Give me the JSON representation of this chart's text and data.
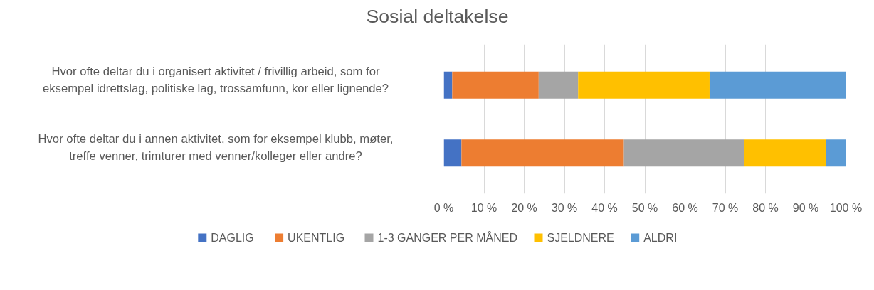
{
  "chart_data": {
    "type": "bar",
    "orientation": "horizontal",
    "stacked": true,
    "title": "Sosial deltakelse",
    "categories": [
      "Hvor ofte deltar du i organisert aktivitet / frivillig arbeid, som for eksempel idrettslag, politiske lag, trossamfunn, kor eller lignende?",
      "Hvor ofte deltar du i annen aktivitet, som for eksempel klubb, møter, treffe venner, trimturer med venner/kolleger eller andre?"
    ],
    "series": [
      {
        "name": "DAGLIG",
        "color": "#4472c4",
        "values": [
          2.1,
          4.4
        ]
      },
      {
        "name": "UKENTLIG",
        "color": "#ed7d31",
        "values": [
          21.5,
          40.4
        ]
      },
      {
        "name": "1-3 GANGER PER MÅNED",
        "color": "#a5a5a5",
        "values": [
          9.8,
          29.9
        ]
      },
      {
        "name": "SJELDNERE",
        "color": "#ffc000",
        "values": [
          32.7,
          20.4
        ]
      },
      {
        "name": "ALDRI",
        "color": "#5b9bd5",
        "values": [
          33.9,
          4.9
        ]
      }
    ],
    "xlim": [
      0,
      100
    ],
    "xticks": [
      {
        "value": 0,
        "label": "0 %"
      },
      {
        "value": 10,
        "label": "10 %"
      },
      {
        "value": 20,
        "label": "20 %"
      },
      {
        "value": 30,
        "label": "30 %"
      },
      {
        "value": 40,
        "label": "40 %"
      },
      {
        "value": 50,
        "label": "50 %"
      },
      {
        "value": 60,
        "label": "60 %"
      },
      {
        "value": 70,
        "label": "70 %"
      },
      {
        "value": 80,
        "label": "80 %"
      },
      {
        "value": 90,
        "label": "90 %"
      },
      {
        "value": 100,
        "label": "100 %"
      }
    ],
    "grid": "x",
    "legend": "bottom"
  }
}
